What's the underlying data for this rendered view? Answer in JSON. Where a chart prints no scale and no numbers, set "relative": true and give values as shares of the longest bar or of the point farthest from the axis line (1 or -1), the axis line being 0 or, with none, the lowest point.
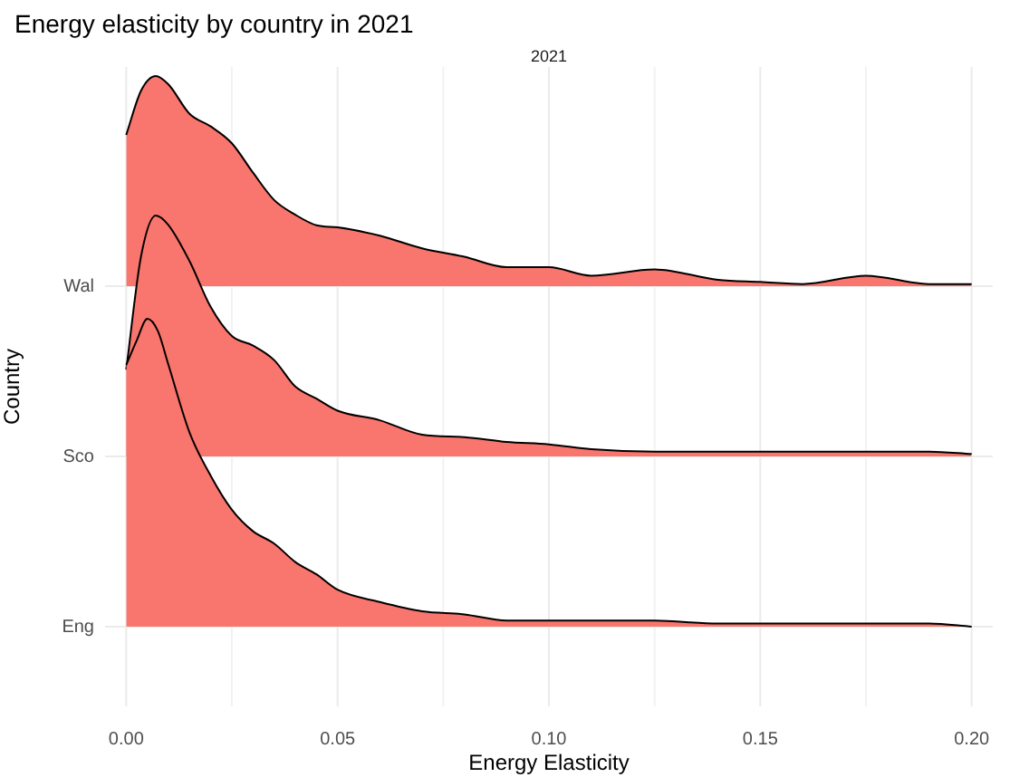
{
  "chart_data": [
    {
      "type": "area",
      "title": "Energy elasticity by country in 2021",
      "subtitle": "2021",
      "relative": true,
      "grid": true,
      "legend": false,
      "tick_labels": "y",
      "x": [
        0,
        0.0035,
        0.007,
        0.01,
        0.015,
        0.02,
        0.025,
        0.03,
        0.035,
        0.04,
        0.045,
        0.05,
        0.06,
        0.07,
        0.08,
        0.09,
        0.1,
        0.11,
        0.125,
        0.14,
        0.15,
        0.16,
        0.175,
        0.19,
        0.2
      ],
      "xlim": [
        -0.005,
        0.205
      ],
      "series": [
        {
          "name": "Wal",
          "color": "#f8766d",
          "values": [
            0.72,
            0.93,
            1,
            0.96,
            0.82,
            0.76,
            0.68,
            0.54,
            0.41,
            0.34,
            0.29,
            0.28,
            0.24,
            0.18,
            0.14,
            0.09,
            0.09,
            0.05,
            0.08,
            0.03,
            0.02,
            0.01,
            0.05,
            0.01,
            0.01
          ]
        }
      ]
    },
    {
      "type": "area",
      "ylabel": "Country",
      "relative": true,
      "legend": false,
      "tick_labels": "y",
      "x": [
        0,
        0.0035,
        0.007,
        0.01,
        0.015,
        0.02,
        0.025,
        0.03,
        0.035,
        0.04,
        0.045,
        0.05,
        0.06,
        0.07,
        0.08,
        0.09,
        0.1,
        0.11,
        0.125,
        0.14,
        0.15,
        0.16,
        0.175,
        0.19,
        0.2
      ],
      "xlim": [
        -0.005,
        0.205
      ],
      "series": [
        {
          "name": "Sco",
          "color": "#f8766d",
          "values": [
            0.36,
            0.83,
            1,
            0.96,
            0.81,
            0.62,
            0.5,
            0.46,
            0.4,
            0.29,
            0.24,
            0.19,
            0.15,
            0.09,
            0.08,
            0.06,
            0.05,
            0.03,
            0.02,
            0.02,
            0.02,
            0.02,
            0.02,
            0.02,
            0.01
          ]
        }
      ]
    },
    {
      "type": "area",
      "xlabel": "Energy Elasticity",
      "relative": true,
      "legend": false,
      "x": [
        0,
        0.0025,
        0.005,
        0.0075,
        0.01,
        0.015,
        0.02,
        0.025,
        0.03,
        0.035,
        0.04,
        0.045,
        0.05,
        0.06,
        0.07,
        0.08,
        0.09,
        0.1,
        0.11,
        0.125,
        0.14,
        0.15,
        0.16,
        0.175,
        0.19,
        0.2
      ],
      "xlim": [
        -0.005,
        0.205
      ],
      "xticks": [
        {
          "value": 0,
          "label": "0.00"
        },
        {
          "value": 0.05,
          "label": "0.05"
        },
        {
          "value": 0.1,
          "label": "0.10"
        },
        {
          "value": 0.15,
          "label": "0.15"
        },
        {
          "value": 0.2,
          "label": "0.20"
        }
      ],
      "series": [
        {
          "name": "Eng",
          "color": "#f8766d",
          "values": [
            0.85,
            0.93,
            1,
            0.96,
            0.85,
            0.63,
            0.49,
            0.38,
            0.31,
            0.27,
            0.21,
            0.17,
            0.12,
            0.08,
            0.05,
            0.04,
            0.02,
            0.02,
            0.02,
            0.02,
            0.01,
            0.01,
            0.01,
            0.01,
            0.01,
            0
          ]
        }
      ]
    }
  ]
}
